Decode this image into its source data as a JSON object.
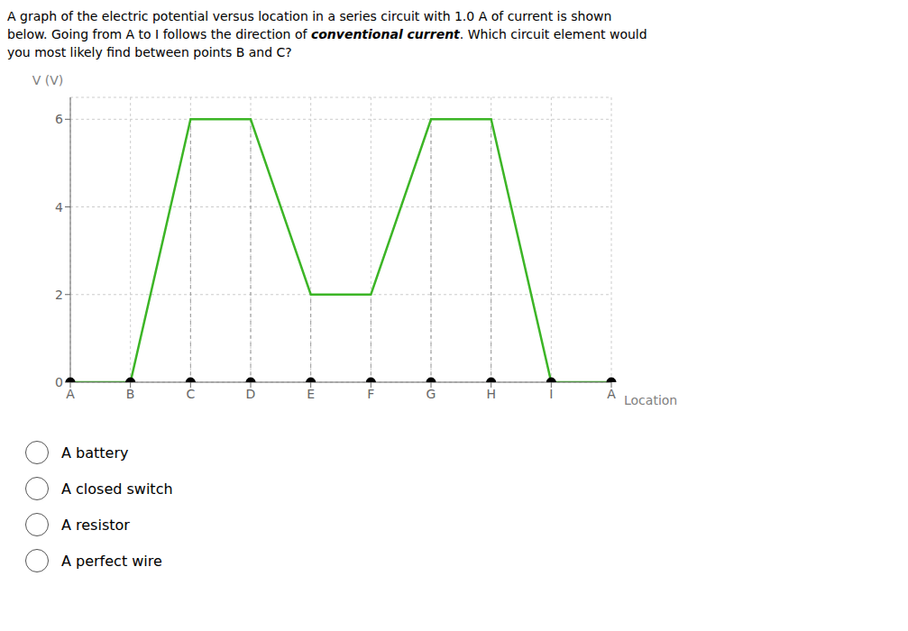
{
  "chart_data": {
    "type": "line",
    "annotations": [
      "A graph of the electric potential versus location in a series circuit with 1.0 A of current is shown",
      "below. Going from A to I follows the direction of ",
      "conventional current",
      ". Which circuit element would",
      "you most likely find between points B and C?",
      "A battery",
      "A closed switch",
      "A resistor",
      "A perfect wire"
    ],
    "x_label": "Location",
    "y_label": "V (V)",
    "categories": [
      "A",
      "B",
      "C",
      "D",
      "E",
      "F",
      "G",
      "H",
      "I",
      "A"
    ],
    "series": [
      {
        "type": "line",
        "color": "#3cb526",
        "values": [
          0,
          0,
          6,
          6,
          2,
          2,
          6,
          6,
          0,
          0
        ]
      },
      {
        "type": "scatter",
        "marker": "circle",
        "color": "#000000",
        "values": [
          0,
          0,
          0,
          0,
          0,
          0,
          0,
          0,
          0,
          0
        ]
      }
    ],
    "ylim": [
      0,
      6.5
    ],
    "yticks": [
      0,
      2,
      4,
      6
    ],
    "grid": true
  }
}
